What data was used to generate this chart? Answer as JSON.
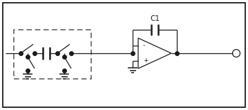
{
  "bg_color": "#ffffff",
  "line_color": "#1a1a1a",
  "dash_color": "#555555",
  "dot_color": "#1a1a1a",
  "fig_width": 3.59,
  "fig_height": 1.59,
  "dpi": 100,
  "border_color": "#1a1a1a",
  "c1_label": "C1",
  "minus_label": "-",
  "plus_label": "+"
}
